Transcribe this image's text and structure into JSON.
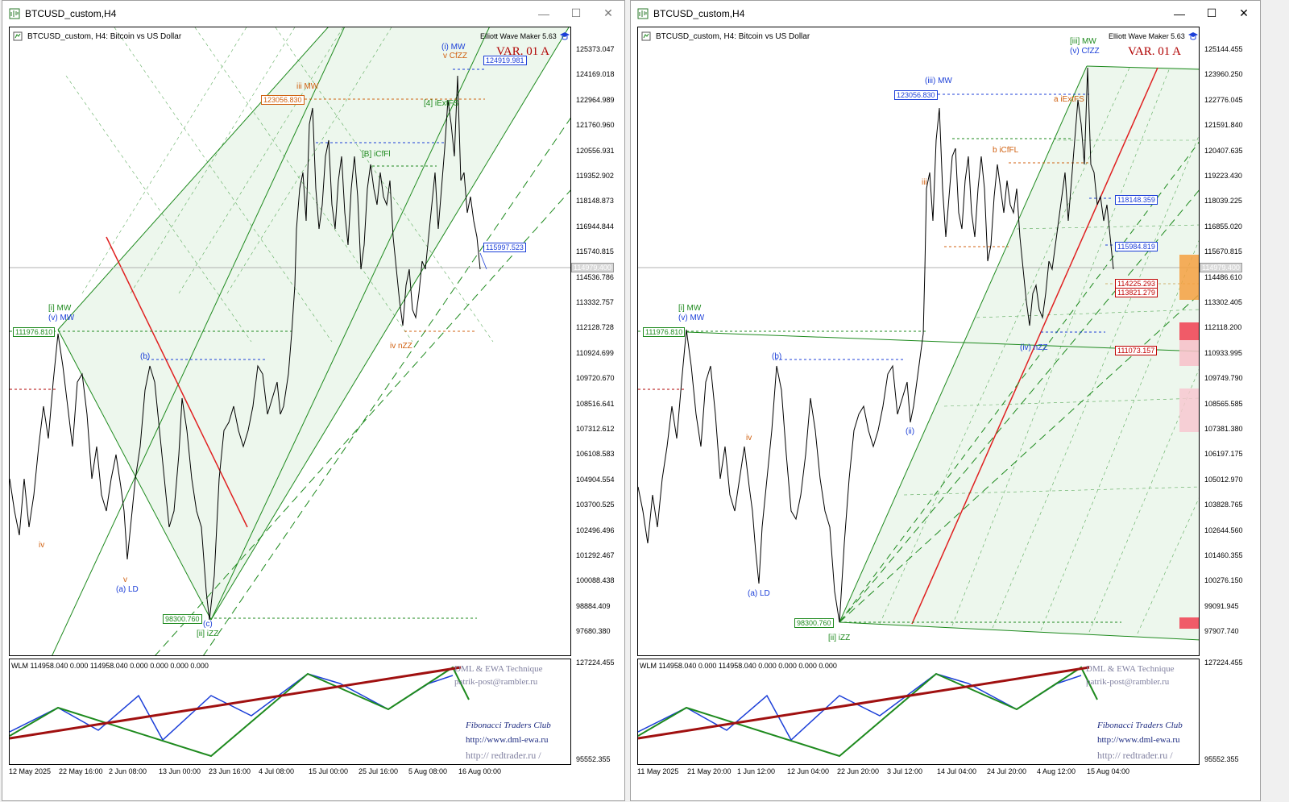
{
  "colors": {
    "green": "#1e8a1e",
    "red": "#e02020",
    "blue": "#1c3fd8",
    "orange": "#d06010",
    "dred": "#a01010"
  },
  "left": {
    "title": "BTCUSD_custom,H4",
    "symbol_info": "BTCUSD_custom, H4:  Bitcoin vs US Dollar",
    "ewm_label": "Elliott Wave Maker 5.63",
    "variant": "VAR. 01 A",
    "prices": [
      "125373.047",
      "124169.018",
      "122964.989",
      "121760.960",
      "120556.931",
      "119352.902",
      "118148.873",
      "116944.844",
      "115740.815",
      "114536.786",
      "113332.757",
      "112128.728",
      "110924.699",
      "109720.670",
      "108516.641",
      "107312.612",
      "106108.583",
      "104904.554",
      "103700.525",
      "102496.496",
      "101292.467",
      "100088.438",
      "98884.409",
      "97680.380"
    ],
    "current_price": "114979.400",
    "ind_prices": [
      "127224.455",
      "95552.355"
    ],
    "dates": [
      "12 May 2025",
      "22 May 16:00",
      "2 Jun 08:00",
      "13 Jun 00:00",
      "23 Jun 16:00",
      "4 Jul 08:00",
      "15 Jul 00:00",
      "25 Jul 16:00",
      "5 Aug 08:00",
      "16 Aug 00:00"
    ],
    "tags": {
      "t1": "124919.981",
      "t2": "123056.830",
      "t3": "115997.523",
      "t4": "111976.810",
      "t5": "98300.760"
    },
    "waves": {
      "w1": "[i] MW",
      "w2": "(v) MW",
      "w3": "(a) LD",
      "w4": "(c)",
      "w5": "[ii] iZZ",
      "w6": "iii MW",
      "w7": "iv nZZ",
      "w8": "(i) MW",
      "w9": "v CfZZ",
      "w10": "[B] iCfFl",
      "w11": "[4] iExtFS",
      "w12": "(b)",
      "w13": "iv",
      "w14": "v"
    }
  },
  "right": {
    "title": "BTCUSD_custom,H4",
    "symbol_info": "BTCUSD_custom, H4:  Bitcoin vs US Dollar",
    "ewm_label": "Elliott Wave Maker 5.63",
    "variant": "VAR. 01 A",
    "prices": [
      "125144.455",
      "123960.250",
      "122776.045",
      "121591.840",
      "120407.635",
      "119223.430",
      "118039.225",
      "116855.020",
      "115670.815",
      "114486.610",
      "113302.405",
      "112118.200",
      "110933.995",
      "109749.790",
      "108565.585",
      "107381.380",
      "106197.175",
      "105012.970",
      "103828.765",
      "102644.560",
      "101460.355",
      "100276.150",
      "99091.945",
      "97907.740"
    ],
    "current_price": "114979.400",
    "ind_prices": [
      "127224.455",
      "95552.355"
    ],
    "dates": [
      "11 May 2025",
      "21 May 20:00",
      "1 Jun 12:00",
      "12 Jun 04:00",
      "22 Jun 20:00",
      "3 Jul 12:00",
      "14 Jul 04:00",
      "24 Jul 20:00",
      "4 Aug 12:00",
      "15 Aug 04:00"
    ],
    "tags": {
      "t1": "123056.830",
      "t2": "118148.359",
      "t3": "115984.819",
      "t4": "114225.293",
      "t5": "113821.279",
      "t6": "111073.157",
      "t7": "111976.810",
      "t8": "98300.760"
    },
    "waves": {
      "w1": "[iii] MW",
      "w2": "(v) CfZZ",
      "w3": "(iii) MW",
      "w4": "a iExtFS",
      "w5": "b iCfFL",
      "w6": "[i] MW",
      "w7": "(v) MW",
      "w8": "(a) LD",
      "w9": "[ii] iZZ",
      "w10": "(iv) nZZ",
      "w11": "iii",
      "w12": "iv",
      "w13": "(ii)",
      "w14": "(b)"
    }
  },
  "indicator": {
    "label": "WLM 114958.040 0.000 114958.040 0.000 0.000 0.000 0.000",
    "credit1": "DML & EWA Technique",
    "credit2": "patrik-post@rambler.ru",
    "credit3": "Fibonacci    Traders    Club",
    "credit4": "http://www.dml-ewa.ru",
    "credit5": "http://  redtrader.ru  /"
  }
}
